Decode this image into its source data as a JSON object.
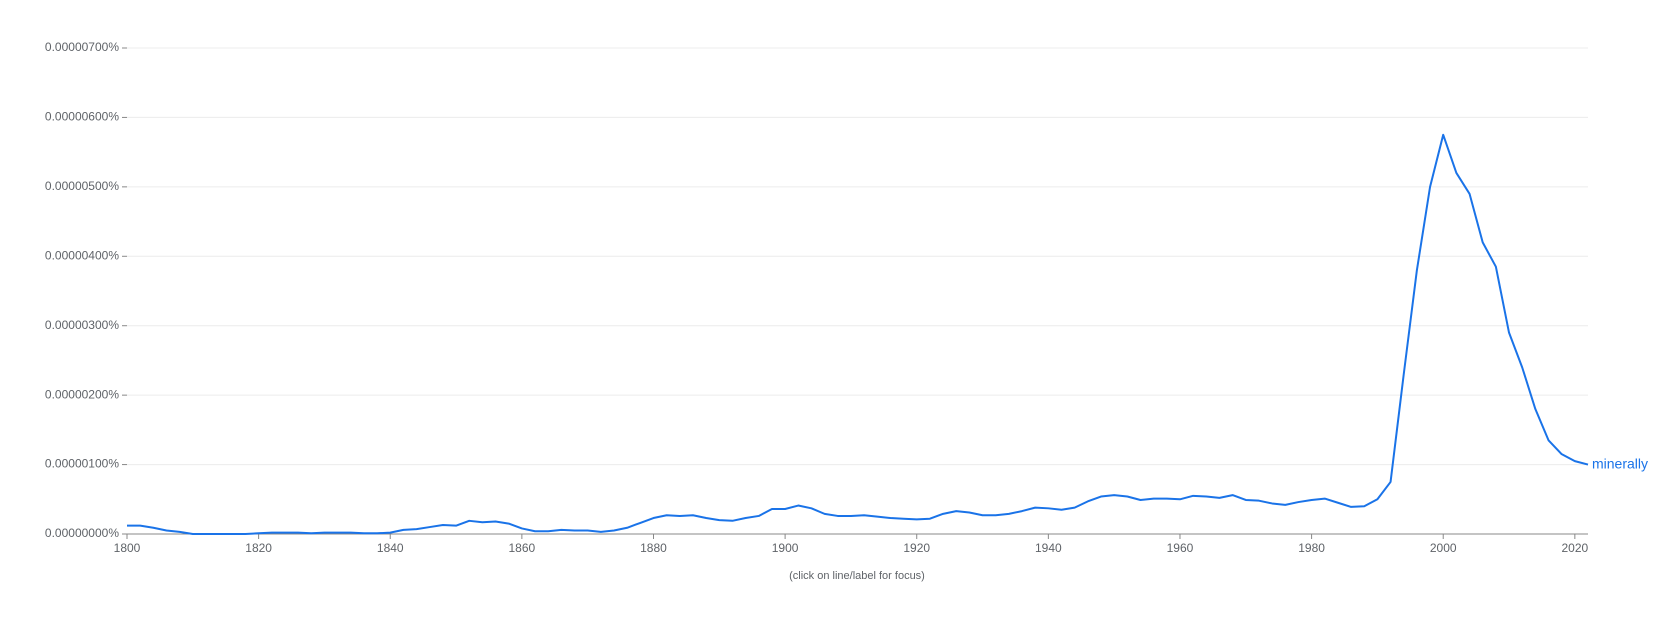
{
  "chart_data": {
    "type": "line",
    "note": "(click on line/label for focus)",
    "x": [
      1800,
      1802,
      1804,
      1806,
      1808,
      1810,
      1812,
      1814,
      1816,
      1818,
      1820,
      1822,
      1824,
      1826,
      1828,
      1830,
      1832,
      1834,
      1836,
      1838,
      1840,
      1842,
      1844,
      1846,
      1848,
      1850,
      1852,
      1854,
      1856,
      1858,
      1860,
      1862,
      1864,
      1866,
      1868,
      1870,
      1872,
      1874,
      1876,
      1878,
      1880,
      1882,
      1884,
      1886,
      1888,
      1890,
      1892,
      1894,
      1896,
      1898,
      1900,
      1902,
      1904,
      1906,
      1908,
      1910,
      1912,
      1914,
      1916,
      1918,
      1920,
      1922,
      1924,
      1926,
      1928,
      1930,
      1932,
      1934,
      1936,
      1938,
      1940,
      1942,
      1944,
      1946,
      1948,
      1950,
      1952,
      1954,
      1956,
      1958,
      1960,
      1962,
      1964,
      1966,
      1968,
      1970,
      1972,
      1974,
      1976,
      1978,
      1980,
      1982,
      1984,
      1986,
      1988,
      1990,
      1992,
      1994,
      1996,
      1998,
      2000,
      2002,
      2004,
      2006,
      2008,
      2010,
      2012,
      2014,
      2016,
      2018,
      2020,
      2022
    ],
    "series": [
      {
        "name": "minerally",
        "color": "#1a73e8",
        "values": [
          1.2e-07,
          1.2e-07,
          9e-08,
          5e-08,
          3e-08,
          0,
          0,
          0,
          0,
          0,
          1e-08,
          2e-08,
          2e-08,
          2e-08,
          1e-08,
          2e-08,
          2e-08,
          2e-08,
          1e-08,
          1e-08,
          2e-08,
          6e-08,
          7e-08,
          1e-07,
          1.3e-07,
          1.2e-07,
          1.9e-07,
          1.7e-07,
          1.8e-07,
          1.5e-07,
          8e-08,
          4e-08,
          4e-08,
          6e-08,
          5e-08,
          5e-08,
          3e-08,
          5e-08,
          9e-08,
          1.6e-07,
          2.3e-07,
          2.7e-07,
          2.6e-07,
          2.7e-07,
          2.3e-07,
          2e-07,
          1.9e-07,
          2.3e-07,
          2.6e-07,
          3.6e-07,
          3.6e-07,
          4.1e-07,
          3.7e-07,
          2.9e-07,
          2.6e-07,
          2.6e-07,
          2.7e-07,
          2.5e-07,
          2.3e-07,
          2.2e-07,
          2.1e-07,
          2.2e-07,
          2.9e-07,
          3.3e-07,
          3.1e-07,
          2.7e-07,
          2.7e-07,
          2.9e-07,
          3.3e-07,
          3.8e-07,
          3.7e-07,
          3.5e-07,
          3.8e-07,
          4.7e-07,
          5.4e-07,
          5.6e-07,
          5.4e-07,
          4.9e-07,
          5.1e-07,
          5.1e-07,
          5e-07,
          5.5e-07,
          5.4e-07,
          5.2e-07,
          5.6e-07,
          4.9e-07,
          4.8e-07,
          4.4e-07,
          4.2e-07,
          4.6e-07,
          4.9e-07,
          5.1e-07,
          4.5e-07,
          3.9e-07,
          4e-07,
          5e-07,
          7.5e-07,
          2.3e-06,
          3.8e-06,
          5e-06,
          5.75e-06,
          5.2e-06,
          4.9e-06,
          4.2e-06,
          3.85e-06,
          2.9e-06,
          2.4e-06,
          1.8e-06,
          1.35e-06,
          1.15e-06,
          1.05e-06,
          1e-06
        ]
      }
    ],
    "xlim": [
      1800,
      2022
    ],
    "xticks": [
      1800,
      1820,
      1840,
      1860,
      1880,
      1900,
      1920,
      1940,
      1960,
      1980,
      2000,
      2020
    ],
    "ylim": [
      0,
      7e-06
    ],
    "yticks": [
      {
        "value": 0,
        "label": "0.00000000%"
      },
      {
        "value": 1e-06,
        "label": "0.00000100%"
      },
      {
        "value": 2e-06,
        "label": "0.00000200%"
      },
      {
        "value": 3e-06,
        "label": "0.00000300%"
      },
      {
        "value": 4e-06,
        "label": "0.00000400%"
      },
      {
        "value": 5e-06,
        "label": "0.00000500%"
      },
      {
        "value": 6e-06,
        "label": "0.00000600%"
      },
      {
        "value": 7e-06,
        "label": "0.00000700%"
      }
    ],
    "grid": true
  }
}
